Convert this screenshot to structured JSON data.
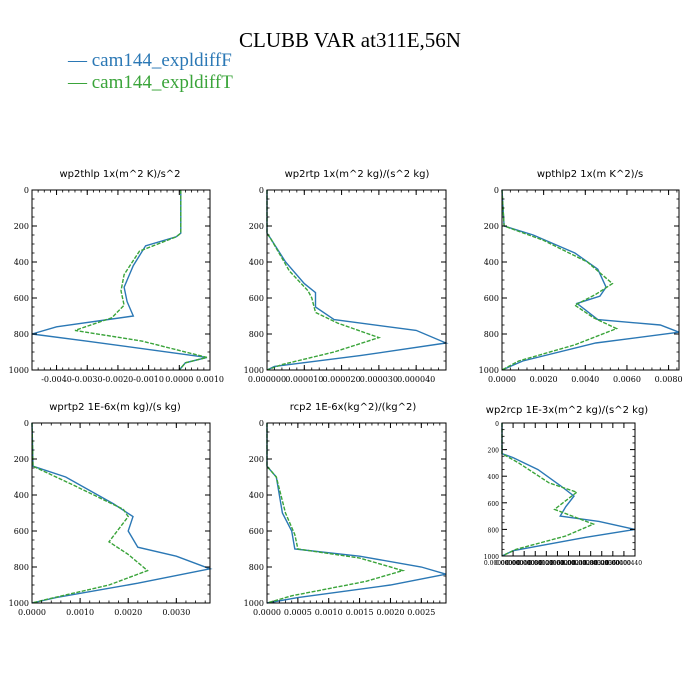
{
  "title": "CLUBB VAR at311E,56N",
  "legend": [
    {
      "label": "— cam144_expldiffF",
      "color": "#2b78b5"
    },
    {
      "label": "— cam144_expldiffT",
      "color": "#3aa43a"
    }
  ],
  "chart_data": [
    {
      "type": "line",
      "title": "wp2thlp   1x(m^2 K)/s^2",
      "xlim": [
        -0.0048,
        0.001
      ],
      "ylim": [
        1000,
        0
      ],
      "xticks": [
        -0.004,
        -0.003,
        -0.002,
        -0.001,
        0.0,
        0.001
      ],
      "xticklabels": [
        "-0.0040",
        "-0.0030",
        "-0.0020",
        "-0.0010",
        "0.0000",
        "0.0010"
      ],
      "yticks": [
        0,
        200,
        400,
        600,
        800,
        1000
      ],
      "series": [
        {
          "name": "cam144_expldiffF",
          "x": [
            5e-05,
            5e-05,
            5e-05,
            -0.0001,
            -0.0011,
            -0.0015,
            -0.0018,
            -0.0017,
            -0.0015,
            -0.004,
            -0.0048,
            -0.003,
            0.0009,
            0.0002,
            0.0
          ],
          "y": [
            0,
            150,
            240,
            260,
            310,
            420,
            540,
            620,
            700,
            760,
            800,
            840,
            930,
            960,
            1000
          ]
        },
        {
          "name": "cam144_expldiffT",
          "x": [
            5e-05,
            5e-05,
            5e-05,
            -0.0001,
            -0.0013,
            -0.0018,
            -0.0019,
            -0.0018,
            -0.0022,
            -0.0034,
            -0.0012,
            0.0009,
            0.0002,
            0.0
          ],
          "y": [
            0,
            150,
            240,
            260,
            340,
            470,
            560,
            640,
            710,
            780,
            840,
            930,
            960,
            1000
          ]
        }
      ]
    },
    {
      "type": "line",
      "title": "wp2rtp   1x(m^2 kg)/(s^2 kg)",
      "xlim": [
        0,
        4.8e-05
      ],
      "ylim": [
        1000,
        0
      ],
      "xticks": [
        0,
        1e-05,
        2e-05,
        3e-05,
        4e-05
      ],
      "xticklabels": [
        "0.000000",
        "0.000010",
        "0.000020",
        "0.000030",
        "0.000040"
      ],
      "yticks": [
        0,
        200,
        400,
        600,
        800,
        1000
      ],
      "series": [
        {
          "name": "cam144_expldiffF",
          "x": [
            0,
            0,
            1e-06,
            5e-06,
            1e-05,
            1.3e-05,
            1.3e-05,
            1.8e-05,
            4e-05,
            4.8e-05,
            2.5e-05,
            2e-06,
            0
          ],
          "y": [
            0,
            240,
            270,
            400,
            520,
            570,
            650,
            720,
            780,
            850,
            920,
            980,
            1000
          ]
        },
        {
          "name": "cam144_expldiffT",
          "x": [
            0,
            0,
            1e-06,
            6e-06,
            1.1e-05,
            1.2e-05,
            1.3e-05,
            1.9e-05,
            3e-05,
            1.8e-05,
            4e-06,
            0
          ],
          "y": [
            0,
            240,
            270,
            450,
            560,
            600,
            680,
            740,
            820,
            900,
            970,
            1000
          ]
        }
      ]
    },
    {
      "type": "line",
      "title": "wpthlp2   1x(m K^2)/s",
      "xlim": [
        0,
        0.0085
      ],
      "ylim": [
        1000,
        0
      ],
      "xticks": [
        0,
        0.002,
        0.004,
        0.006,
        0.008
      ],
      "xticklabels": [
        "0.0000",
        "0.0020",
        "0.0040",
        "0.0060",
        "0.0080"
      ],
      "yticks": [
        0,
        200,
        400,
        600,
        800,
        1000
      ],
      "series": [
        {
          "name": "cam144_expldiffF",
          "x": [
            0,
            0.0001,
            0.0015,
            0.0035,
            0.0046,
            0.005,
            0.0047,
            0.0036,
            0.0046,
            0.0076,
            0.0085,
            0.0045,
            0.001,
            0
          ],
          "y": [
            0,
            200,
            250,
            350,
            440,
            540,
            590,
            630,
            720,
            750,
            790,
            850,
            950,
            1000
          ]
        },
        {
          "name": "cam144_expldiffT",
          "x": [
            0,
            0.0001,
            0.002,
            0.0041,
            0.0048,
            0.0053,
            0.0045,
            0.0035,
            0.0044,
            0.0055,
            0.0035,
            0.0008,
            0
          ],
          "y": [
            0,
            200,
            280,
            400,
            470,
            520,
            580,
            640,
            710,
            770,
            860,
            950,
            1000
          ]
        }
      ]
    },
    {
      "type": "line",
      "title": "wprtp2   1E-6x(m kg)/(s kg)",
      "xlim": [
        0,
        0.0037
      ],
      "ylim": [
        1000,
        0
      ],
      "xticks": [
        0,
        0.001,
        0.002,
        0.003
      ],
      "xticklabels": [
        "0.0000",
        "0.0010",
        "0.0020",
        "0.0030"
      ],
      "yticks": [
        0,
        200,
        400,
        600,
        800,
        1000
      ],
      "series": [
        {
          "name": "cam144_expldiffF",
          "x": [
            0,
            2e-05,
            0.0007,
            0.0017,
            0.0021,
            0.002,
            0.0022,
            0.003,
            0.0037,
            0.0022,
            0.0005,
            0
          ],
          "y": [
            0,
            240,
            300,
            450,
            520,
            600,
            690,
            740,
            810,
            890,
            970,
            1000
          ]
        },
        {
          "name": "cam144_expldiffT",
          "x": [
            0,
            2e-05,
            0.0009,
            0.0019,
            0.002,
            0.0016,
            0.002,
            0.0024,
            0.0016,
            0.0003,
            0
          ],
          "y": [
            0,
            240,
            350,
            480,
            520,
            660,
            730,
            820,
            900,
            980,
            1000
          ]
        }
      ]
    },
    {
      "type": "line",
      "title": "rcp2   1E-6x(kg^2)/(kg^2)",
      "xlim": [
        0,
        0.0029
      ],
      "ylim": [
        1000,
        0
      ],
      "xticks": [
        0,
        0.0005,
        0.001,
        0.0015,
        0.002,
        0.0025
      ],
      "xticklabels": [
        "0.0000",
        "0.0005",
        "0.0010",
        "0.0015",
        "0.0020",
        "0.0025"
      ],
      "yticks": [
        0,
        200,
        400,
        600,
        800,
        1000
      ],
      "series": [
        {
          "name": "cam144_expldiffF",
          "x": [
            0,
            0,
            0.00015,
            0.00025,
            0.0004,
            0.00045,
            0.0015,
            0.0025,
            0.0029,
            0.002,
            0.0005,
            0
          ],
          "y": [
            0,
            240,
            300,
            500,
            600,
            700,
            740,
            800,
            840,
            900,
            970,
            1000
          ]
        },
        {
          "name": "cam144_expldiffT",
          "x": [
            0,
            0,
            0.00015,
            0.0003,
            0.00045,
            0.0005,
            0.0015,
            0.0022,
            0.0016,
            0.0004,
            0
          ],
          "y": [
            0,
            240,
            300,
            500,
            620,
            700,
            750,
            820,
            880,
            960,
            1000
          ]
        }
      ]
    },
    {
      "type": "line",
      "title": "wp2rcp   1E-3x(m^2 kg)/(s^2 kg)",
      "xlim": [
        0,
        4.8e-06
      ],
      "ylim": [
        1000,
        0
      ],
      "xticks": [
        0,
        4e-07,
        8e-07,
        1.2e-06,
        1.6e-06,
        2e-06,
        2.4e-06,
        2.8e-06,
        3.2e-06,
        3.6e-06,
        4e-06,
        4.4e-06
      ],
      "xticklabels": [
        "0.00000000",
        "0.00000040",
        "0.00000080",
        "0.00000120",
        "0.00000160",
        "0.00000200",
        "0.00000240",
        "0.00000280",
        "0.00000320",
        "0.00000360",
        "0.00000400",
        "0.00000440"
      ],
      "yticks": [
        0,
        200,
        400,
        600,
        800,
        1000
      ],
      "series": [
        {
          "name": "cam144_expldiffF",
          "x": [
            0,
            0,
            4e-07,
            1.3e-06,
            2.1e-06,
            2.6e-06,
            2.3e-06,
            2.1e-06,
            3.5e-06,
            4.8e-06,
            3e-06,
            4e-07,
            0
          ],
          "y": [
            0,
            230,
            260,
            350,
            470,
            550,
            630,
            700,
            740,
            800,
            860,
            960,
            1000
          ]
        },
        {
          "name": "cam144_expldiffT",
          "x": [
            0,
            0,
            6e-07,
            1.7e-06,
            2.7e-06,
            2.2e-06,
            1.9e-06,
            3.3e-06,
            2.3e-06,
            5e-07,
            0
          ],
          "y": [
            0,
            230,
            300,
            450,
            520,
            600,
            650,
            760,
            850,
            950,
            1000
          ]
        }
      ]
    }
  ]
}
